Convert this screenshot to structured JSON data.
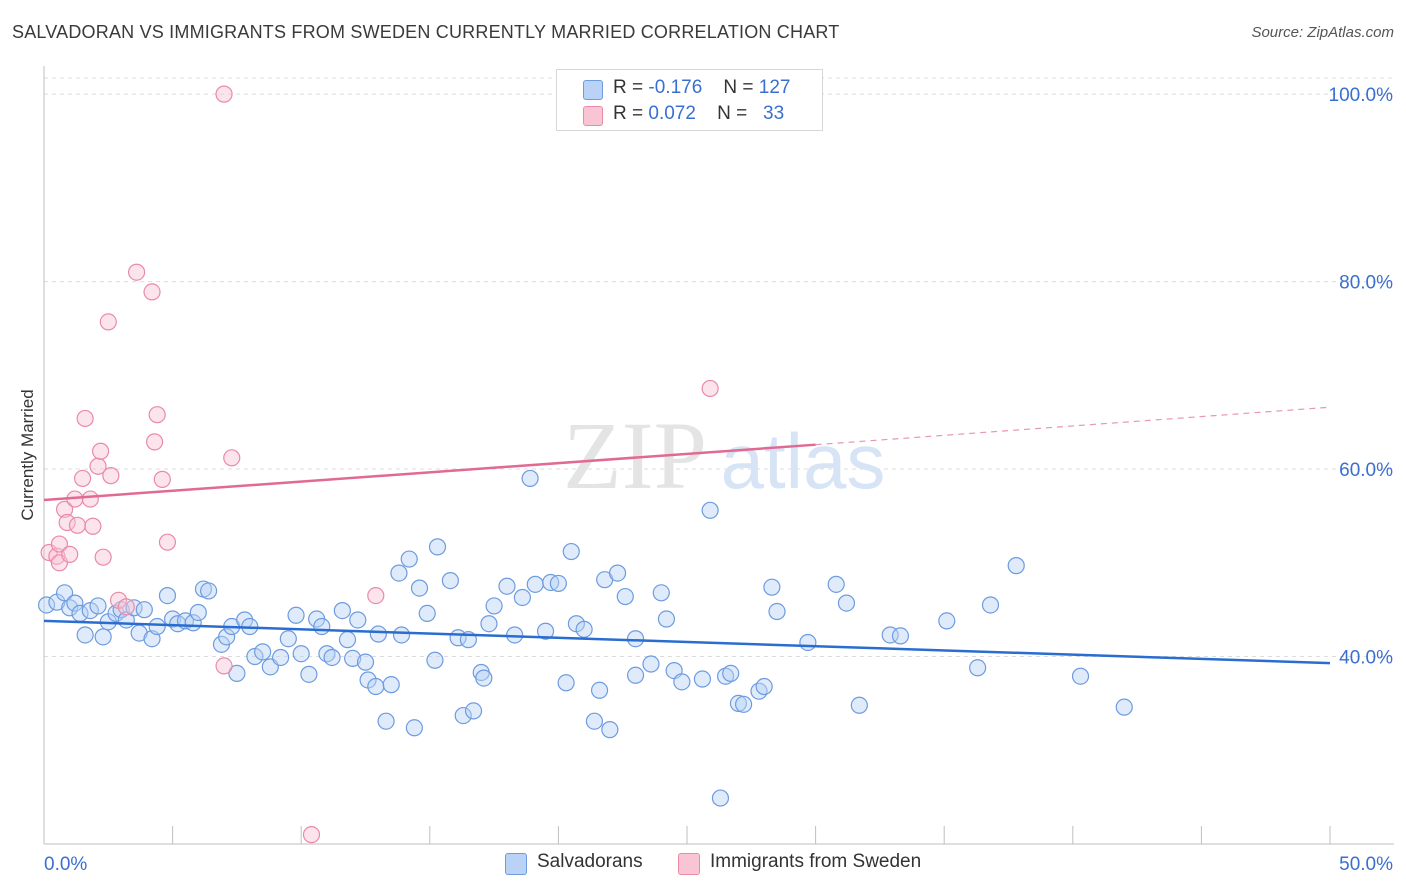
{
  "title": "SALVADORAN VS IMMIGRANTS FROM SWEDEN CURRENTLY MARRIED CORRELATION CHART",
  "source": "Source: ZipAtlas.com",
  "watermark": {
    "zip": "ZIP",
    "atlas": "atlas"
  },
  "legend": {
    "rows": [
      {
        "r_label": "R =",
        "r_value": "-0.176",
        "n_label": "N =",
        "n_value": "127",
        "color": "#a8c8f5",
        "border": "#6d9be0"
      },
      {
        "r_label": "R =",
        "r_value": "0.072",
        "n_label": "N =",
        "n_value": "33",
        "color": "#f9c4d4",
        "border": "#ea8aa8"
      }
    ]
  },
  "chart_data": {
    "type": "scatter",
    "xlabel": "",
    "ylabel": "Currently Married",
    "xlim": [
      0,
      50
    ],
    "ylim": [
      20,
      103
    ],
    "x_tick_labels": [
      "0.0%",
      "50.0%"
    ],
    "y_tick_labels": [
      "100.0%",
      "80.0%",
      "60.0%",
      "40.0%"
    ],
    "y_ticks": [
      100,
      80,
      60,
      40
    ],
    "grid": true,
    "legend_position": "top-center",
    "series": [
      {
        "name": "Salvadorans",
        "color": "#6d9be0",
        "fill": "#b9d2f5",
        "trend": {
          "x0": 0,
          "y0": 43.8,
          "x1": 50,
          "y1": 39.3,
          "color": "#2a6dd0"
        },
        "points": [
          [
            0.1,
            45.5
          ],
          [
            0.5,
            45.8
          ],
          [
            0.8,
            46.8
          ],
          [
            1.0,
            45.2
          ],
          [
            1.2,
            45.7
          ],
          [
            1.4,
            44.6
          ],
          [
            1.6,
            42.3
          ],
          [
            1.8,
            44.9
          ],
          [
            2.1,
            45.4
          ],
          [
            2.3,
            42.1
          ],
          [
            2.5,
            43.7
          ],
          [
            2.8,
            44.6
          ],
          [
            3.0,
            45.0
          ],
          [
            3.2,
            43.9
          ],
          [
            3.5,
            45.2
          ],
          [
            3.7,
            42.5
          ],
          [
            3.9,
            45.0
          ],
          [
            4.2,
            41.9
          ],
          [
            4.4,
            43.2
          ],
          [
            4.8,
            46.5
          ],
          [
            5.0,
            44.0
          ],
          [
            5.2,
            43.5
          ],
          [
            5.5,
            43.8
          ],
          [
            5.8,
            43.6
          ],
          [
            6.0,
            44.7
          ],
          [
            6.2,
            47.2
          ],
          [
            6.4,
            47.0
          ],
          [
            6.9,
            41.3
          ],
          [
            7.1,
            42.1
          ],
          [
            7.3,
            43.2
          ],
          [
            7.5,
            38.2
          ],
          [
            7.8,
            43.9
          ],
          [
            8.0,
            43.2
          ],
          [
            8.2,
            40.0
          ],
          [
            8.5,
            40.5
          ],
          [
            8.8,
            38.9
          ],
          [
            9.2,
            39.9
          ],
          [
            9.5,
            41.9
          ],
          [
            9.8,
            44.4
          ],
          [
            10.0,
            40.3
          ],
          [
            10.3,
            38.1
          ],
          [
            10.6,
            44.0
          ],
          [
            10.8,
            43.2
          ],
          [
            11.0,
            40.3
          ],
          [
            11.2,
            39.9
          ],
          [
            11.6,
            44.9
          ],
          [
            11.8,
            41.8
          ],
          [
            12.0,
            39.8
          ],
          [
            12.2,
            43.9
          ],
          [
            12.5,
            39.4
          ],
          [
            12.6,
            37.5
          ],
          [
            12.9,
            36.8
          ],
          [
            13.0,
            42.4
          ],
          [
            13.3,
            33.1
          ],
          [
            13.5,
            37.0
          ],
          [
            13.8,
            48.9
          ],
          [
            13.9,
            42.3
          ],
          [
            14.2,
            50.4
          ],
          [
            14.4,
            32.4
          ],
          [
            14.6,
            47.3
          ],
          [
            14.9,
            44.6
          ],
          [
            15.2,
            39.6
          ],
          [
            15.3,
            51.7
          ],
          [
            15.8,
            48.1
          ],
          [
            16.1,
            42.0
          ],
          [
            16.3,
            33.7
          ],
          [
            16.5,
            41.8
          ],
          [
            16.7,
            34.2
          ],
          [
            17.0,
            38.3
          ],
          [
            17.1,
            37.7
          ],
          [
            17.3,
            43.5
          ],
          [
            17.5,
            45.4
          ],
          [
            18.0,
            47.5
          ],
          [
            18.3,
            42.3
          ],
          [
            18.6,
            46.3
          ],
          [
            18.9,
            59.0
          ],
          [
            19.1,
            47.7
          ],
          [
            19.5,
            42.7
          ],
          [
            19.7,
            47.9
          ],
          [
            20.0,
            47.8
          ],
          [
            20.3,
            37.2
          ],
          [
            20.5,
            51.2
          ],
          [
            20.7,
            43.5
          ],
          [
            21.0,
            42.9
          ],
          [
            21.4,
            33.1
          ],
          [
            21.6,
            36.4
          ],
          [
            21.8,
            48.2
          ],
          [
            22.0,
            32.2
          ],
          [
            22.3,
            48.9
          ],
          [
            22.6,
            46.4
          ],
          [
            23.0,
            41.9
          ],
          [
            23.0,
            38.0
          ],
          [
            23.6,
            39.2
          ],
          [
            24.0,
            46.8
          ],
          [
            24.2,
            44.0
          ],
          [
            24.5,
            38.5
          ],
          [
            24.8,
            37.3
          ],
          [
            25.6,
            37.6
          ],
          [
            25.9,
            55.6
          ],
          [
            26.3,
            24.9
          ],
          [
            26.5,
            37.9
          ],
          [
            26.7,
            38.2
          ],
          [
            27.0,
            35.0
          ],
          [
            27.2,
            34.9
          ],
          [
            27.8,
            36.3
          ],
          [
            28.0,
            36.8
          ],
          [
            28.3,
            47.4
          ],
          [
            28.5,
            44.8
          ],
          [
            29.7,
            41.5
          ],
          [
            30.8,
            47.7
          ],
          [
            31.2,
            45.7
          ],
          [
            31.7,
            34.8
          ],
          [
            32.9,
            42.3
          ],
          [
            33.3,
            42.2
          ],
          [
            35.1,
            43.8
          ],
          [
            36.3,
            38.8
          ],
          [
            36.8,
            45.5
          ],
          [
            37.8,
            49.7
          ],
          [
            40.3,
            37.9
          ],
          [
            42.0,
            34.6
          ]
        ]
      },
      {
        "name": "Immigrants from Sweden",
        "color": "#ea8aa8",
        "fill": "#f9c4d4",
        "trend": {
          "x0": 0,
          "y0": 56.7,
          "x1": 30,
          "y1": 62.6,
          "x2": 50,
          "y2": 66.6,
          "color": "#e06a92"
        },
        "points": [
          [
            0.2,
            51.1
          ],
          [
            0.5,
            50.7
          ],
          [
            0.6,
            50.0
          ],
          [
            0.6,
            52.0
          ],
          [
            0.8,
            55.7
          ],
          [
            0.9,
            54.3
          ],
          [
            1.0,
            50.9
          ],
          [
            1.2,
            56.8
          ],
          [
            1.3,
            54.0
          ],
          [
            1.5,
            59.0
          ],
          [
            1.6,
            65.4
          ],
          [
            1.8,
            56.8
          ],
          [
            1.9,
            53.9
          ],
          [
            2.1,
            60.3
          ],
          [
            2.2,
            61.9
          ],
          [
            2.3,
            50.6
          ],
          [
            2.5,
            75.7
          ],
          [
            2.6,
            59.3
          ],
          [
            2.9,
            46.0
          ],
          [
            3.2,
            45.3
          ],
          [
            3.6,
            81.0
          ],
          [
            4.2,
            78.9
          ],
          [
            4.4,
            65.8
          ],
          [
            4.3,
            62.9
          ],
          [
            4.6,
            58.9
          ],
          [
            4.8,
            52.2
          ],
          [
            7.0,
            100.0
          ],
          [
            7.0,
            39.0
          ],
          [
            7.3,
            61.2
          ],
          [
            10.4,
            21.0
          ],
          [
            12.9,
            46.5
          ],
          [
            25.9,
            68.6
          ]
        ]
      }
    ]
  }
}
